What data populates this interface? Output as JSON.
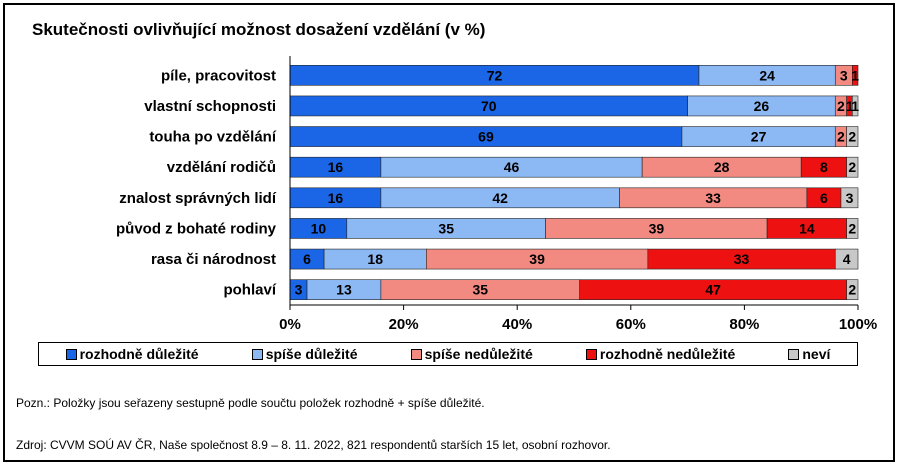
{
  "title": "Skutečnosti ovlivňující možnost dosažení vzdělání (v %)",
  "note": "Pozn.: Položky jsou seřazeny sestupně podle součtu položek rozhodně + spíše důležité.",
  "source": "Zdroj: CVVM SOÚ AV ČR, Naše společnost 8.9 – 8. 11. 2022, 821 respondentů starších 15 let, osobní rozhovor.",
  "colors": {
    "rozhodne_dulezite": "#1a66e6",
    "spise_dulezite": "#8cb8f4",
    "spise_nedulezite": "#f28a82",
    "rozhodne_nedulezite": "#ee1111",
    "nevi": "#c8c8c8"
  },
  "chart_data": {
    "type": "bar",
    "orientation": "horizontal",
    "stacked": true,
    "categories": [
      "píle, pracovitost",
      "vlastní schopnosti",
      "touha po vzdělání",
      "vzdělání rodičů",
      "znalost správných lidí",
      "původ z bohaté rodiny",
      "rasa či národnost",
      "pohlaví"
    ],
    "series": [
      {
        "name": "rozhodně důležité",
        "color": "#1a66e6",
        "values": [
          72,
          70,
          69,
          16,
          16,
          10,
          6,
          3
        ]
      },
      {
        "name": "spíše důležité",
        "color": "#8cb8f4",
        "values": [
          24,
          26,
          27,
          46,
          42,
          35,
          18,
          13
        ]
      },
      {
        "name": "spíše nedůležité",
        "color": "#f28a82",
        "values": [
          3,
          2,
          2,
          28,
          33,
          39,
          39,
          35
        ]
      },
      {
        "name": "rozhodně nedůležité",
        "color": "#ee1111",
        "values": [
          1,
          1,
          0,
          8,
          6,
          14,
          33,
          47
        ]
      },
      {
        "name": "neví",
        "color": "#c8c8c8",
        "values": [
          0,
          1,
          2,
          2,
          3,
          2,
          4,
          2
        ]
      }
    ],
    "xlim": [
      0,
      100
    ],
    "x_ticks": [
      "0%",
      "20%",
      "40%",
      "60%",
      "80%",
      "100%"
    ],
    "legend_position": "bottom",
    "grid": false
  }
}
